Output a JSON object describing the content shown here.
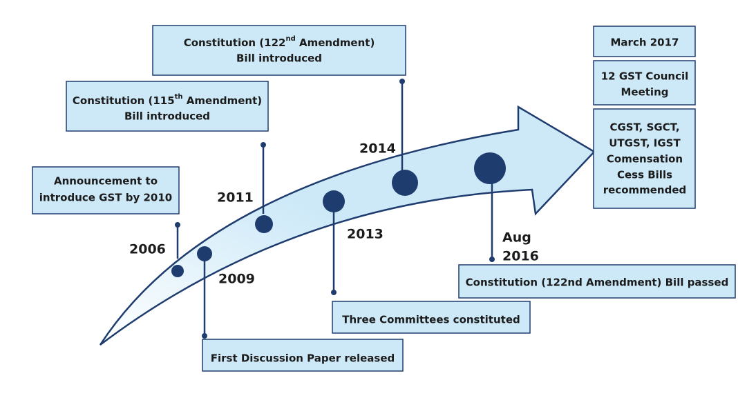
{
  "events": [
    {
      "year": [
        "2006"
      ],
      "box": [
        "Announcement to",
        "introduce GST by 2010"
      ]
    },
    {
      "year": [
        "2009"
      ],
      "box": [
        "First Discussion Paper released"
      ]
    },
    {
      "year": [
        "2011"
      ],
      "box": [
        [
          "Constitution (115",
          "th",
          " Amendment)"
        ],
        "Bill introduced"
      ]
    },
    {
      "year": [
        "2013"
      ],
      "box": [
        "Three Committees constituted"
      ]
    },
    {
      "year": [
        "2014"
      ],
      "box": [
        [
          "Constitution (122",
          "nd",
          " Amendment)"
        ],
        "Bill introduced"
      ]
    },
    {
      "year": [
        "Aug",
        "2016"
      ],
      "box": [
        "Constitution (122nd Amendment) Bill passed"
      ]
    }
  ],
  "final": [
    [
      "March 2017"
    ],
    [
      "12 GST Council",
      "Meeting"
    ],
    [
      "CGST, SGCT,",
      "UTGST, IGST",
      "Comensation",
      "Cess Bills",
      "recommended"
    ]
  ]
}
